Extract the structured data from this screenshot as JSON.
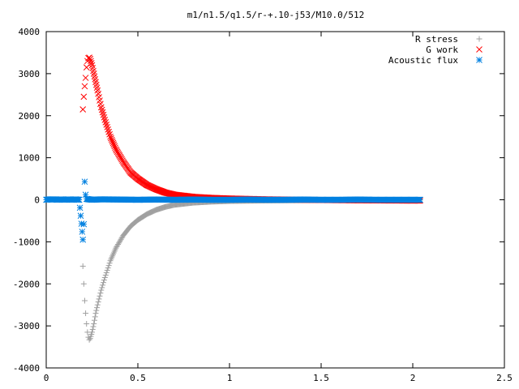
{
  "chart_data": {
    "type": "scatter",
    "title": "m1/n1.5/q1.5/r-+.10-j53/M10.0/512",
    "xlabel": "",
    "ylabel": "",
    "xlim": [
      0,
      2.5
    ],
    "ylim": [
      -4000,
      4000
    ],
    "x_ticks": [
      "0",
      "0.5",
      "1",
      "1.5",
      "2",
      "2.5"
    ],
    "y_ticks": [
      "4000",
      "3000",
      "2000",
      "1000",
      "0",
      "-1000",
      "-2000",
      "-3000",
      "-4000"
    ],
    "legend_position": "top-right",
    "grid": false,
    "series": [
      {
        "name": "R stress",
        "marker": "plus",
        "color": "#a0a0a0",
        "x": [
          0.2,
          0.205,
          0.21,
          0.215,
          0.22,
          0.225,
          0.23,
          0.235,
          0.24,
          0.25,
          0.26,
          0.27,
          0.28,
          0.3,
          0.32,
          0.35,
          0.38,
          0.42,
          0.46,
          0.5,
          0.55,
          0.6,
          0.65,
          0.7,
          0.8,
          0.9,
          1.0,
          1.2,
          1.4,
          1.6,
          1.8,
          2.0,
          2.04
        ],
        "y": [
          -1580,
          -2000,
          -2400,
          -2700,
          -2950,
          -3150,
          -3270,
          -3330,
          -3300,
          -3150,
          -2950,
          -2700,
          -2500,
          -2150,
          -1850,
          -1450,
          -1150,
          -850,
          -630,
          -480,
          -340,
          -240,
          -170,
          -120,
          -70,
          -45,
          -30,
          -18,
          -12,
          -8,
          -6,
          -5,
          -5
        ]
      },
      {
        "name": "G work",
        "marker": "cross",
        "color": "#ff0000",
        "x": [
          0.2,
          0.205,
          0.21,
          0.215,
          0.22,
          0.225,
          0.23,
          0.235,
          0.24,
          0.25,
          0.26,
          0.27,
          0.28,
          0.3,
          0.32,
          0.35,
          0.38,
          0.42,
          0.46,
          0.5,
          0.55,
          0.6,
          0.65,
          0.7,
          0.8,
          0.9,
          1.0,
          1.2,
          1.4,
          1.6,
          1.8,
          2.0,
          2.04
        ],
        "y": [
          2150,
          2450,
          2700,
          2900,
          3150,
          3300,
          3370,
          3380,
          3350,
          3200,
          3000,
          2800,
          2600,
          2200,
          1900,
          1500,
          1200,
          900,
          650,
          500,
          350,
          250,
          170,
          120,
          70,
          45,
          30,
          10,
          0,
          -10,
          -15,
          -20,
          -20
        ]
      },
      {
        "name": "Acoustic flux",
        "marker": "star",
        "color": "#0080e0",
        "x": [
          0,
          0.02,
          0.04,
          0.06,
          0.08,
          0.1,
          0.12,
          0.14,
          0.16,
          0.18,
          0.2,
          0.205,
          0.21,
          0.215,
          0.22,
          0.25,
          0.3,
          0.4,
          0.5,
          0.6,
          0.7,
          0.8,
          0.9,
          1.0,
          1.1,
          1.2,
          1.3,
          1.4,
          1.5,
          1.6,
          1.7,
          1.8,
          1.9,
          2.0,
          2.04
        ],
        "y": [
          0,
          10,
          10,
          0,
          10,
          0,
          10,
          0,
          10,
          0,
          -950,
          -580,
          430,
          120,
          20,
          0,
          10,
          5,
          0,
          5,
          0,
          5,
          0,
          0,
          5,
          0,
          0,
          5,
          0,
          0,
          5,
          0,
          0,
          0,
          0
        ]
      }
    ]
  }
}
